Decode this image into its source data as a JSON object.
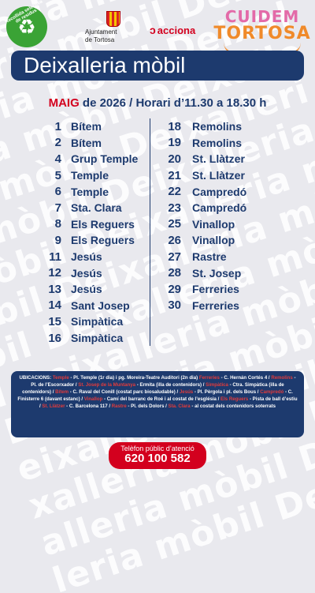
{
  "background_word": "Deixalleria mòbil ",
  "header": {
    "recycle_ring": "Recollida selectiva de residus",
    "recycle_icon": "recycle-icon",
    "ajuntament_line1": "Ajuntament",
    "ajuntament_line2": "de Tortosa",
    "acciona": "acciona",
    "cuidem_line1": "CUIDEM",
    "cuidem_line2": "TORTOSA"
  },
  "title": "Deixalleria mòbil",
  "date_line": {
    "month": "MAIG",
    "rest": " de 2026 / Horari d’11.30 a 18.30 h"
  },
  "schedule_left": [
    {
      "day": "1",
      "place": "Bítem"
    },
    {
      "day": "2",
      "place": "Bítem"
    },
    {
      "day": "4",
      "place": "Grup Temple"
    },
    {
      "day": "5",
      "place": "Temple"
    },
    {
      "day": "6",
      "place": "Temple"
    },
    {
      "day": "7",
      "place": "Sta. Clara"
    },
    {
      "day": "8",
      "place": "Els Reguers"
    },
    {
      "day": "9",
      "place": "Els Reguers"
    },
    {
      "day": "11",
      "place": "Jesús"
    },
    {
      "day": "12",
      "place": "Jesús"
    },
    {
      "day": "13",
      "place": "Jesús"
    },
    {
      "day": "14",
      "place": "Sant Josep"
    },
    {
      "day": "15",
      "place": "Simpàtica"
    },
    {
      "day": "16",
      "place": "Simpàtica"
    }
  ],
  "schedule_right": [
    {
      "day": "18",
      "place": "Remolins"
    },
    {
      "day": "19",
      "place": "Remolins"
    },
    {
      "day": "20",
      "place": "St. Llàtzer"
    },
    {
      "day": "21",
      "place": "St. Llàtzer"
    },
    {
      "day": "22",
      "place": "Campredó"
    },
    {
      "day": "23",
      "place": "Campredó"
    },
    {
      "day": "25",
      "place": "Vinallop"
    },
    {
      "day": "26",
      "place": "Vinallop"
    },
    {
      "day": "27",
      "place": "Rastre"
    },
    {
      "day": "28",
      "place": "St. Josep"
    },
    {
      "day": "29",
      "place": "Ferreries"
    },
    {
      "day": "30",
      "place": "Ferreries"
    }
  ],
  "locations": {
    "label": "UBICACIONS: ",
    "segments": [
      {
        "hl": true,
        "text": "Temple"
      },
      {
        "hl": false,
        "text": " - Pl. Temple (1r dia) i pg. Moreira-Teatre Auditori (2n dia) "
      },
      {
        "hl": true,
        "text": "Ferreries"
      },
      {
        "hl": false,
        "text": " - C. Hernán Cortés 4 / "
      },
      {
        "hl": true,
        "text": "Remolins"
      },
      {
        "hl": false,
        "text": " - Pl. de l’Escorxador / "
      },
      {
        "hl": true,
        "text": "St. Josep de la Muntanya"
      },
      {
        "hl": false,
        "text": " - Ermita (illa de contenidors) / "
      },
      {
        "hl": true,
        "text": "Simpàtica"
      },
      {
        "hl": false,
        "text": " - Ctra. Simpàtica (illa de contenidors) / "
      },
      {
        "hl": true,
        "text": "Bítem"
      },
      {
        "hl": false,
        "text": " - C. Raval del Conill (costat parc biosaludable) / "
      },
      {
        "hl": true,
        "text": "Jesús"
      },
      {
        "hl": false,
        "text": " - Pl. Pèrgola i pl. dels Bous / "
      },
      {
        "hl": true,
        "text": "Campredó"
      },
      {
        "hl": false,
        "text": " - C. Finisterre 6 (davant estanc) / "
      },
      {
        "hl": true,
        "text": "Vinallop"
      },
      {
        "hl": false,
        "text": " - Camí del barranc de Roé i al costat de l’església / "
      },
      {
        "hl": true,
        "text": "Els Reguers"
      },
      {
        "hl": false,
        "text": " - Pista de ball d’estiu / "
      },
      {
        "hl": true,
        "text": "St. Llàtzer"
      },
      {
        "hl": false,
        "text": " - C. Barcelona 117 / "
      },
      {
        "hl": true,
        "text": "Rastre"
      },
      {
        "hl": false,
        "text": " - Pl. dels Dolors / "
      },
      {
        "hl": true,
        "text": "Sta. Clara"
      },
      {
        "hl": false,
        "text": " - al costat dels contenidors soterrats"
      }
    ]
  },
  "phone": {
    "label": "Telèfon públic d’atenció",
    "number": "620 100 582"
  },
  "colors": {
    "navy": "#1d3a6e",
    "red": "#d3001e",
    "green": "#3aa335"
  }
}
